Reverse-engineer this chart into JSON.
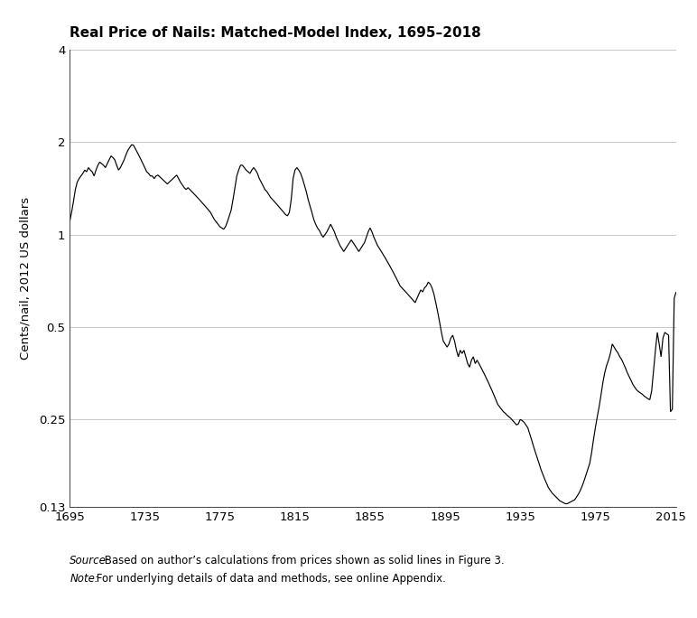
{
  "title": "Real Price of Nails: Matched-Model Index, 1695–2018",
  "ylabel": "Cents/nail, 2012 US dollars",
  "source_label": "Source:",
  "source_rest": " Based on author’s calculations from prices shown as solid lines in Figure 3.",
  "note_label": "Note:",
  "note_rest": " For underlying details of data and methods, see online Appendix.",
  "xmin": 1695,
  "xmax": 2018,
  "ymin": 0.13,
  "ymax": 4.0,
  "xticks": [
    1695,
    1735,
    1775,
    1815,
    1855,
    1895,
    1935,
    1975,
    2015
  ],
  "yticks": [
    0.13,
    0.25,
    0.5,
    1.0,
    2.0,
    4.0
  ],
  "ytick_labels": [
    "0.13",
    "0.25",
    "0.5",
    "1",
    "2",
    "4"
  ],
  "data": [
    [
      1695,
      1.1
    ],
    [
      1696,
      1.18
    ],
    [
      1697,
      1.28
    ],
    [
      1698,
      1.4
    ],
    [
      1699,
      1.48
    ],
    [
      1700,
      1.52
    ],
    [
      1701,
      1.55
    ],
    [
      1702,
      1.58
    ],
    [
      1703,
      1.62
    ],
    [
      1704,
      1.6
    ],
    [
      1705,
      1.65
    ],
    [
      1706,
      1.62
    ],
    [
      1707,
      1.6
    ],
    [
      1708,
      1.55
    ],
    [
      1709,
      1.62
    ],
    [
      1710,
      1.68
    ],
    [
      1711,
      1.72
    ],
    [
      1712,
      1.7
    ],
    [
      1713,
      1.68
    ],
    [
      1714,
      1.65
    ],
    [
      1715,
      1.7
    ],
    [
      1716,
      1.75
    ],
    [
      1717,
      1.8
    ],
    [
      1718,
      1.78
    ],
    [
      1719,
      1.75
    ],
    [
      1720,
      1.68
    ],
    [
      1721,
      1.62
    ],
    [
      1722,
      1.65
    ],
    [
      1723,
      1.7
    ],
    [
      1724,
      1.75
    ],
    [
      1725,
      1.82
    ],
    [
      1726,
      1.88
    ],
    [
      1727,
      1.92
    ],
    [
      1728,
      1.96
    ],
    [
      1729,
      1.95
    ],
    [
      1730,
      1.9
    ],
    [
      1731,
      1.85
    ],
    [
      1732,
      1.8
    ],
    [
      1733,
      1.75
    ],
    [
      1734,
      1.7
    ],
    [
      1735,
      1.65
    ],
    [
      1736,
      1.6
    ],
    [
      1737,
      1.58
    ],
    [
      1738,
      1.55
    ],
    [
      1739,
      1.55
    ],
    [
      1740,
      1.52
    ],
    [
      1741,
      1.55
    ],
    [
      1742,
      1.56
    ],
    [
      1743,
      1.54
    ],
    [
      1744,
      1.52
    ],
    [
      1745,
      1.5
    ],
    [
      1746,
      1.48
    ],
    [
      1747,
      1.46
    ],
    [
      1748,
      1.48
    ],
    [
      1749,
      1.5
    ],
    [
      1750,
      1.52
    ],
    [
      1751,
      1.54
    ],
    [
      1752,
      1.56
    ],
    [
      1753,
      1.52
    ],
    [
      1754,
      1.48
    ],
    [
      1755,
      1.45
    ],
    [
      1756,
      1.42
    ],
    [
      1757,
      1.4
    ],
    [
      1758,
      1.42
    ],
    [
      1759,
      1.4
    ],
    [
      1760,
      1.38
    ],
    [
      1761,
      1.36
    ],
    [
      1762,
      1.34
    ],
    [
      1763,
      1.32
    ],
    [
      1764,
      1.3
    ],
    [
      1765,
      1.28
    ],
    [
      1766,
      1.26
    ],
    [
      1767,
      1.24
    ],
    [
      1768,
      1.22
    ],
    [
      1769,
      1.2
    ],
    [
      1770,
      1.18
    ],
    [
      1771,
      1.15
    ],
    [
      1772,
      1.12
    ],
    [
      1773,
      1.1
    ],
    [
      1774,
      1.08
    ],
    [
      1775,
      1.06
    ],
    [
      1776,
      1.05
    ],
    [
      1777,
      1.04
    ],
    [
      1778,
      1.06
    ],
    [
      1779,
      1.1
    ],
    [
      1780,
      1.15
    ],
    [
      1781,
      1.2
    ],
    [
      1782,
      1.3
    ],
    [
      1783,
      1.42
    ],
    [
      1784,
      1.55
    ],
    [
      1785,
      1.62
    ],
    [
      1786,
      1.68
    ],
    [
      1787,
      1.68
    ],
    [
      1788,
      1.65
    ],
    [
      1789,
      1.62
    ],
    [
      1790,
      1.6
    ],
    [
      1791,
      1.58
    ],
    [
      1792,
      1.62
    ],
    [
      1793,
      1.65
    ],
    [
      1794,
      1.62
    ],
    [
      1795,
      1.58
    ],
    [
      1796,
      1.52
    ],
    [
      1797,
      1.48
    ],
    [
      1798,
      1.44
    ],
    [
      1799,
      1.4
    ],
    [
      1800,
      1.38
    ],
    [
      1801,
      1.35
    ],
    [
      1802,
      1.32
    ],
    [
      1803,
      1.3
    ],
    [
      1804,
      1.28
    ],
    [
      1805,
      1.26
    ],
    [
      1806,
      1.24
    ],
    [
      1807,
      1.22
    ],
    [
      1808,
      1.2
    ],
    [
      1809,
      1.18
    ],
    [
      1810,
      1.16
    ],
    [
      1811,
      1.15
    ],
    [
      1812,
      1.18
    ],
    [
      1813,
      1.3
    ],
    [
      1814,
      1.52
    ],
    [
      1815,
      1.62
    ],
    [
      1816,
      1.65
    ],
    [
      1817,
      1.62
    ],
    [
      1818,
      1.58
    ],
    [
      1819,
      1.52
    ],
    [
      1820,
      1.45
    ],
    [
      1821,
      1.38
    ],
    [
      1822,
      1.3
    ],
    [
      1823,
      1.24
    ],
    [
      1824,
      1.18
    ],
    [
      1825,
      1.12
    ],
    [
      1826,
      1.08
    ],
    [
      1827,
      1.05
    ],
    [
      1828,
      1.03
    ],
    [
      1829,
      1.0
    ],
    [
      1830,
      0.98
    ],
    [
      1831,
      1.0
    ],
    [
      1832,
      1.02
    ],
    [
      1833,
      1.05
    ],
    [
      1834,
      1.08
    ],
    [
      1835,
      1.05
    ],
    [
      1836,
      1.02
    ],
    [
      1837,
      0.98
    ],
    [
      1838,
      0.95
    ],
    [
      1839,
      0.92
    ],
    [
      1840,
      0.9
    ],
    [
      1841,
      0.88
    ],
    [
      1842,
      0.9
    ],
    [
      1843,
      0.92
    ],
    [
      1844,
      0.94
    ],
    [
      1845,
      0.96
    ],
    [
      1846,
      0.94
    ],
    [
      1847,
      0.92
    ],
    [
      1848,
      0.9
    ],
    [
      1849,
      0.88
    ],
    [
      1850,
      0.9
    ],
    [
      1851,
      0.92
    ],
    [
      1852,
      0.94
    ],
    [
      1853,
      0.98
    ],
    [
      1854,
      1.02
    ],
    [
      1855,
      1.05
    ],
    [
      1856,
      1.02
    ],
    [
      1857,
      0.98
    ],
    [
      1858,
      0.95
    ],
    [
      1859,
      0.92
    ],
    [
      1860,
      0.9
    ],
    [
      1861,
      0.88
    ],
    [
      1862,
      0.86
    ],
    [
      1863,
      0.84
    ],
    [
      1864,
      0.82
    ],
    [
      1865,
      0.8
    ],
    [
      1866,
      0.78
    ],
    [
      1867,
      0.76
    ],
    [
      1868,
      0.74
    ],
    [
      1869,
      0.72
    ],
    [
      1870,
      0.7
    ],
    [
      1871,
      0.68
    ],
    [
      1872,
      0.67
    ],
    [
      1873,
      0.66
    ],
    [
      1874,
      0.65
    ],
    [
      1875,
      0.64
    ],
    [
      1876,
      0.63
    ],
    [
      1877,
      0.62
    ],
    [
      1878,
      0.61
    ],
    [
      1879,
      0.6
    ],
    [
      1880,
      0.62
    ],
    [
      1881,
      0.64
    ],
    [
      1882,
      0.66
    ],
    [
      1883,
      0.65
    ],
    [
      1884,
      0.67
    ],
    [
      1885,
      0.68
    ],
    [
      1886,
      0.7
    ],
    [
      1887,
      0.69
    ],
    [
      1888,
      0.67
    ],
    [
      1889,
      0.64
    ],
    [
      1890,
      0.6
    ],
    [
      1891,
      0.56
    ],
    [
      1892,
      0.52
    ],
    [
      1893,
      0.48
    ],
    [
      1894,
      0.45
    ],
    [
      1895,
      0.44
    ],
    [
      1896,
      0.43
    ],
    [
      1897,
      0.44
    ],
    [
      1898,
      0.46
    ],
    [
      1899,
      0.47
    ],
    [
      1900,
      0.45
    ],
    [
      1901,
      0.42
    ],
    [
      1902,
      0.4
    ],
    [
      1903,
      0.42
    ],
    [
      1904,
      0.41
    ],
    [
      1905,
      0.42
    ],
    [
      1906,
      0.4
    ],
    [
      1907,
      0.38
    ],
    [
      1908,
      0.37
    ],
    [
      1909,
      0.39
    ],
    [
      1910,
      0.4
    ],
    [
      1911,
      0.38
    ],
    [
      1912,
      0.39
    ],
    [
      1913,
      0.38
    ],
    [
      1914,
      0.37
    ],
    [
      1915,
      0.36
    ],
    [
      1916,
      0.35
    ],
    [
      1917,
      0.34
    ],
    [
      1918,
      0.33
    ],
    [
      1919,
      0.32
    ],
    [
      1920,
      0.31
    ],
    [
      1921,
      0.3
    ],
    [
      1922,
      0.29
    ],
    [
      1923,
      0.28
    ],
    [
      1924,
      0.275
    ],
    [
      1925,
      0.27
    ],
    [
      1926,
      0.265
    ],
    [
      1927,
      0.262
    ],
    [
      1928,
      0.258
    ],
    [
      1929,
      0.255
    ],
    [
      1930,
      0.252
    ],
    [
      1931,
      0.248
    ],
    [
      1932,
      0.244
    ],
    [
      1933,
      0.24
    ],
    [
      1934,
      0.242
    ],
    [
      1935,
      0.25
    ],
    [
      1936,
      0.248
    ],
    [
      1937,
      0.245
    ],
    [
      1938,
      0.24
    ],
    [
      1939,
      0.235
    ],
    [
      1940,
      0.225
    ],
    [
      1941,
      0.215
    ],
    [
      1942,
      0.205
    ],
    [
      1943,
      0.196
    ],
    [
      1944,
      0.188
    ],
    [
      1945,
      0.18
    ],
    [
      1946,
      0.172
    ],
    [
      1947,
      0.166
    ],
    [
      1948,
      0.16
    ],
    [
      1949,
      0.155
    ],
    [
      1950,
      0.15
    ],
    [
      1951,
      0.147
    ],
    [
      1952,
      0.144
    ],
    [
      1953,
      0.142
    ],
    [
      1954,
      0.14
    ],
    [
      1955,
      0.138
    ],
    [
      1956,
      0.136
    ],
    [
      1957,
      0.135
    ],
    [
      1958,
      0.134
    ],
    [
      1959,
      0.133
    ],
    [
      1960,
      0.133
    ],
    [
      1961,
      0.134
    ],
    [
      1962,
      0.135
    ],
    [
      1963,
      0.136
    ],
    [
      1964,
      0.137
    ],
    [
      1965,
      0.14
    ],
    [
      1966,
      0.143
    ],
    [
      1967,
      0.147
    ],
    [
      1968,
      0.152
    ],
    [
      1969,
      0.158
    ],
    [
      1970,
      0.165
    ],
    [
      1971,
      0.172
    ],
    [
      1972,
      0.18
    ],
    [
      1973,
      0.195
    ],
    [
      1974,
      0.215
    ],
    [
      1975,
      0.235
    ],
    [
      1976,
      0.255
    ],
    [
      1977,
      0.275
    ],
    [
      1978,
      0.3
    ],
    [
      1979,
      0.33
    ],
    [
      1980,
      0.355
    ],
    [
      1981,
      0.375
    ],
    [
      1982,
      0.39
    ],
    [
      1983,
      0.41
    ],
    [
      1984,
      0.44
    ],
    [
      1985,
      0.43
    ],
    [
      1986,
      0.42
    ],
    [
      1987,
      0.412
    ],
    [
      1988,
      0.4
    ],
    [
      1989,
      0.392
    ],
    [
      1990,
      0.38
    ],
    [
      1991,
      0.368
    ],
    [
      1992,
      0.355
    ],
    [
      1993,
      0.345
    ],
    [
      1994,
      0.335
    ],
    [
      1995,
      0.325
    ],
    [
      1996,
      0.318
    ],
    [
      1997,
      0.312
    ],
    [
      1998,
      0.308
    ],
    [
      1999,
      0.305
    ],
    [
      2000,
      0.302
    ],
    [
      2001,
      0.298
    ],
    [
      2002,
      0.295
    ],
    [
      2003,
      0.292
    ],
    [
      2004,
      0.29
    ],
    [
      2005,
      0.31
    ],
    [
      2006,
      0.36
    ],
    [
      2007,
      0.42
    ],
    [
      2008,
      0.48
    ],
    [
      2009,
      0.44
    ],
    [
      2010,
      0.4
    ],
    [
      2011,
      0.46
    ],
    [
      2012,
      0.48
    ],
    [
      2013,
      0.475
    ],
    [
      2014,
      0.47
    ],
    [
      2015,
      0.265
    ],
    [
      2016,
      0.27
    ],
    [
      2017,
      0.62
    ],
    [
      2018,
      0.65
    ]
  ]
}
